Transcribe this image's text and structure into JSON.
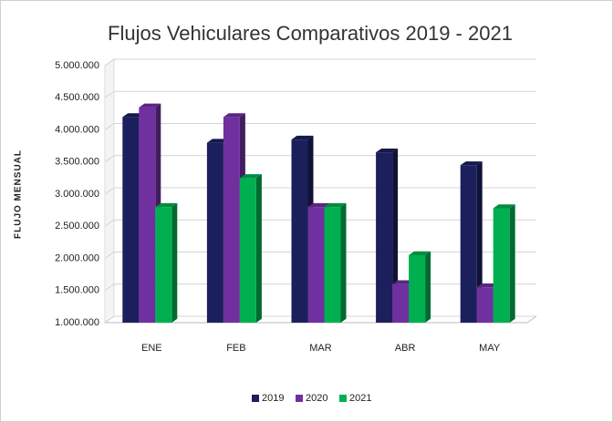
{
  "chart_data": {
    "type": "bar3d",
    "title": "Flujos Vehiculares Comparativos 2019 - 2021",
    "y_label": "FLUJO MENSUAL",
    "categories": [
      "ENE",
      "FEB",
      "MAR",
      "ABR",
      "MAY"
    ],
    "series": [
      {
        "name": "2019",
        "color": "#1b1f5c",
        "values": [
          4200000,
          3800000,
          3850000,
          3650000,
          3450000
        ]
      },
      {
        "name": "2020",
        "color": "#7030a0",
        "values": [
          4350000,
          4200000,
          2800000,
          1600000,
          1550000
        ]
      },
      {
        "name": "2021",
        "color": "#00b050",
        "values": [
          2800000,
          3250000,
          2800000,
          2050000,
          2780000
        ]
      }
    ],
    "ylim": [
      1000000,
      5000000
    ],
    "yticks": [
      {
        "value": 1000000,
        "label": "1.000.000"
      },
      {
        "value": 1500000,
        "label": "1.500.000"
      },
      {
        "value": 2000000,
        "label": "2.000.000"
      },
      {
        "value": 2500000,
        "label": "2.500.000"
      },
      {
        "value": 3000000,
        "label": "3.000.000"
      },
      {
        "value": 3500000,
        "label": "3.500.000"
      },
      {
        "value": 4000000,
        "label": "4.000.000"
      },
      {
        "value": 4500000,
        "label": "4.500.000"
      },
      {
        "value": 5000000,
        "label": "5.000.000"
      }
    ],
    "grid": true,
    "legend": "bottom"
  }
}
